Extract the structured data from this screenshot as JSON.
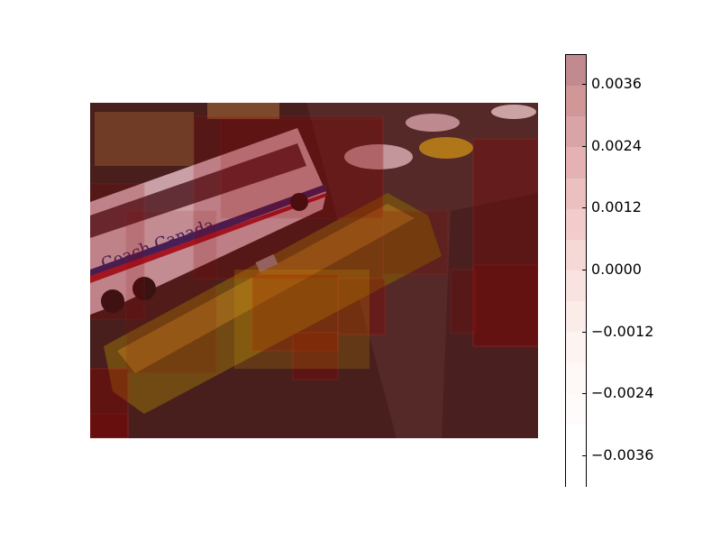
{
  "figure": {
    "image_description_hidden": "",
    "overlay_tint": "#8b0000",
    "colorbar": {
      "tick_labels": [
        "0.0036",
        "0.0024",
        "0.0012",
        "0.0000",
        "−0.0012",
        "−0.0024",
        "−0.0036"
      ],
      "band_colors": [
        "#c08a8f",
        "#d09799",
        "#d9a4a6",
        "#e4b2b3",
        "#edc0c0",
        "#f2cccb",
        "#f6d8d6",
        "#f9e3e1",
        "#fbece9",
        "#fdf3f1",
        "#fef8f7",
        "#fffbfb",
        "#ffffff",
        "#ffffff"
      ]
    },
    "photo_text": {
      "bus_brand": "Coach Canada"
    }
  }
}
